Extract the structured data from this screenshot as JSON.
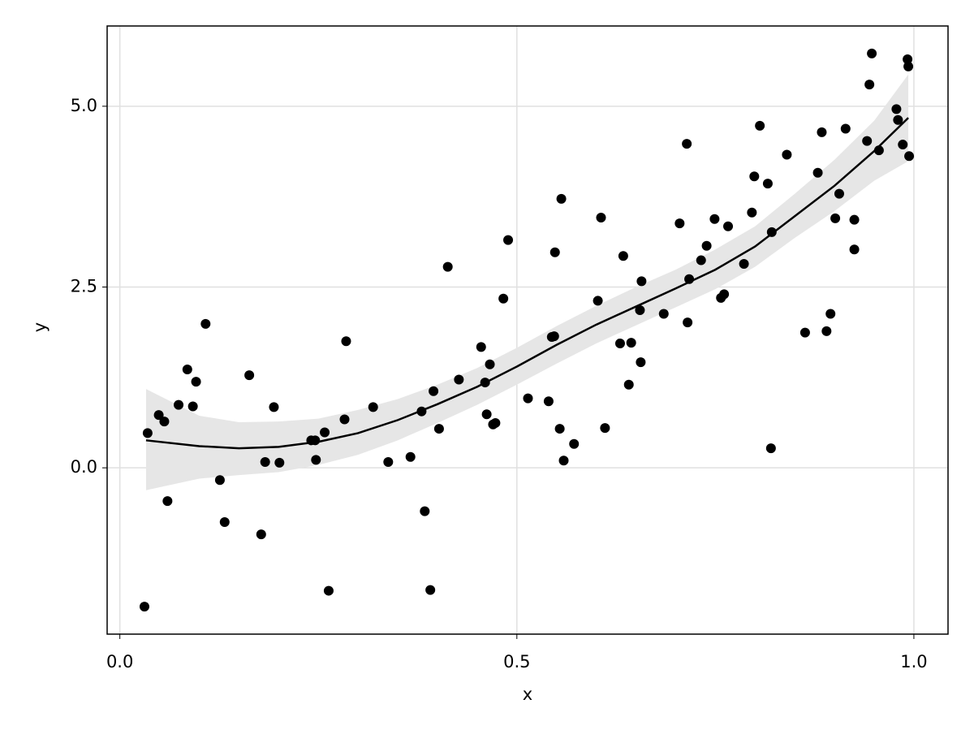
{
  "chart_data": {
    "type": "scatter",
    "xlabel": "x",
    "ylabel": "y",
    "x": [
      0.031,
      0.035,
      0.049,
      0.056,
      0.06,
      0.074,
      0.085,
      0.092,
      0.096,
      0.108,
      0.126,
      0.132,
      0.163,
      0.178,
      0.183,
      0.194,
      0.201,
      0.241,
      0.246,
      0.247,
      0.258,
      0.263,
      0.283,
      0.285,
      0.319,
      0.338,
      0.366,
      0.38,
      0.384,
      0.391,
      0.395,
      0.402,
      0.413,
      0.427,
      0.455,
      0.46,
      0.462,
      0.466,
      0.47,
      0.473,
      0.483,
      0.489,
      0.514,
      0.54,
      0.544,
      0.547,
      0.548,
      0.554,
      0.556,
      0.559,
      0.572,
      0.602,
      0.606,
      0.611,
      0.63,
      0.634,
      0.641,
      0.644,
      0.655,
      0.656,
      0.657,
      0.685,
      0.705,
      0.714,
      0.715,
      0.717,
      0.732,
      0.739,
      0.749,
      0.757,
      0.761,
      0.766,
      0.786,
      0.796,
      0.799,
      0.806,
      0.816,
      0.82,
      0.821,
      0.84,
      0.863,
      0.879,
      0.884,
      0.89,
      0.895,
      0.901,
      0.906,
      0.914,
      0.925,
      0.925,
      0.941,
      0.944,
      0.947,
      0.956,
      0.978,
      0.98,
      0.986,
      0.992,
      0.993,
      0.994
    ],
    "y": [
      -1.92,
      0.48,
      0.73,
      0.64,
      -0.46,
      0.87,
      1.36,
      0.85,
      1.19,
      1.99,
      -0.17,
      -0.75,
      1.28,
      -0.92,
      0.08,
      0.84,
      0.07,
      0.38,
      0.38,
      0.11,
      0.49,
      -1.7,
      0.67,
      1.75,
      0.84,
      0.08,
      0.15,
      0.78,
      -0.6,
      -1.69,
      1.06,
      0.54,
      2.78,
      1.22,
      1.67,
      1.18,
      0.74,
      1.43,
      0.6,
      0.62,
      2.34,
      3.15,
      0.96,
      0.92,
      1.81,
      1.82,
      2.98,
      0.54,
      3.72,
      0.1,
      0.33,
      2.31,
      3.46,
      0.55,
      1.72,
      2.93,
      1.15,
      1.73,
      2.18,
      1.46,
      2.58,
      2.13,
      3.38,
      4.48,
      2.01,
      2.61,
      2.87,
      3.07,
      3.44,
      2.35,
      2.4,
      3.34,
      2.82,
      3.53,
      4.03,
      4.73,
      3.93,
      0.27,
      3.26,
      4.33,
      1.87,
      4.08,
      4.64,
      1.89,
      2.13,
      3.45,
      3.79,
      4.69,
      3.02,
      3.43,
      4.52,
      5.3,
      5.73,
      4.39,
      4.96,
      4.81,
      4.47,
      5.65,
      5.55,
      4.31
    ],
    "color": "#000000",
    "fit": {
      "x": [
        0.033,
        0.1,
        0.15,
        0.2,
        0.25,
        0.3,
        0.35,
        0.4,
        0.45,
        0.5,
        0.55,
        0.6,
        0.65,
        0.7,
        0.75,
        0.8,
        0.85,
        0.9,
        0.95,
        0.993
      ],
      "y": [
        0.38,
        0.3,
        0.27,
        0.29,
        0.36,
        0.48,
        0.66,
        0.88,
        1.12,
        1.4,
        1.7,
        1.98,
        2.23,
        2.48,
        2.74,
        3.06,
        3.48,
        3.9,
        4.38,
        4.84
      ],
      "lower": [
        -0.31,
        -0.15,
        -0.1,
        -0.06,
        0.04,
        0.18,
        0.38,
        0.62,
        0.87,
        1.15,
        1.44,
        1.72,
        1.97,
        2.22,
        2.47,
        2.78,
        3.18,
        3.55,
        3.97,
        4.24
      ],
      "upper": [
        1.09,
        0.72,
        0.63,
        0.64,
        0.68,
        0.8,
        0.95,
        1.15,
        1.38,
        1.66,
        1.96,
        2.24,
        2.5,
        2.74,
        3.02,
        3.34,
        3.79,
        4.26,
        4.8,
        5.44
      ],
      "color": "#000000",
      "band_color": "#e6e6e6"
    },
    "xlim": [
      -0.016,
      1.043
    ],
    "ylim": [
      -2.3,
      6.11
    ],
    "xticks": [
      {
        "value": 0,
        "label": "0.0"
      },
      0.5,
      {
        "value": 1,
        "label": "1.0"
      }
    ],
    "yticks": [
      {
        "value": 0,
        "label": "0.0"
      },
      2.5,
      {
        "value": 5,
        "label": "5.0"
      }
    ],
    "grid": true
  }
}
